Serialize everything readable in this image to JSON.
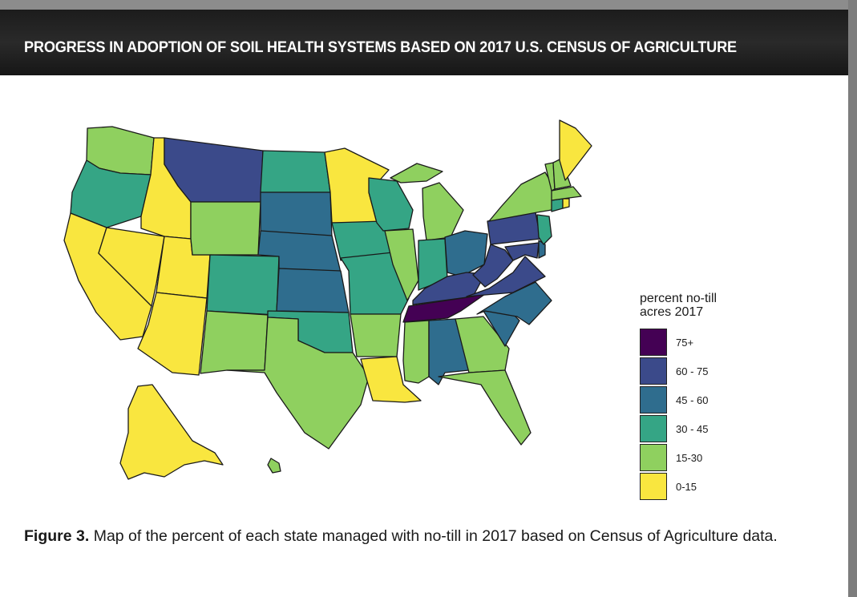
{
  "header": {
    "title": "PROGRESS IN ADOPTION OF SOIL HEALTH SYSTEMS BASED ON 2017 U.S. CENSUS OF AGRICULTURE"
  },
  "legend": {
    "title_line1": "percent no-till",
    "title_line2": "acres 2017",
    "items": [
      {
        "label": "75+",
        "color": "#440154"
      },
      {
        "label": "60 - 75",
        "color": "#3b4a8a"
      },
      {
        "label": "45 - 60",
        "color": "#2f6d8e"
      },
      {
        "label": "30 - 45",
        "color": "#35a585"
      },
      {
        "label": "15-30",
        "color": "#8fd05f"
      },
      {
        "label": "0-15",
        "color": "#f9e63f"
      }
    ]
  },
  "caption": {
    "label": "Figure 3.",
    "text": " Map of the percent of each state managed with no-till in 2017 based on Census of Agriculture data."
  },
  "states": [
    {
      "id": "WA",
      "bin": "15-30"
    },
    {
      "id": "OR",
      "bin": "30 - 45"
    },
    {
      "id": "CA",
      "bin": "0-15"
    },
    {
      "id": "NV",
      "bin": "0-15"
    },
    {
      "id": "ID",
      "bin": "0-15"
    },
    {
      "id": "UT",
      "bin": "0-15"
    },
    {
      "id": "AZ",
      "bin": "0-15"
    },
    {
      "id": "MT",
      "bin": "60 - 75"
    },
    {
      "id": "WY",
      "bin": "15-30"
    },
    {
      "id": "CO",
      "bin": "30 - 45"
    },
    {
      "id": "NM",
      "bin": "15-30"
    },
    {
      "id": "ND",
      "bin": "30 - 45"
    },
    {
      "id": "SD",
      "bin": "45 - 60"
    },
    {
      "id": "NE",
      "bin": "45 - 60"
    },
    {
      "id": "KS",
      "bin": "45 - 60"
    },
    {
      "id": "OK",
      "bin": "30 - 45"
    },
    {
      "id": "TX",
      "bin": "15-30"
    },
    {
      "id": "MN",
      "bin": "0-15"
    },
    {
      "id": "IA",
      "bin": "30 - 45"
    },
    {
      "id": "MO",
      "bin": "30 - 45"
    },
    {
      "id": "AR",
      "bin": "15-30"
    },
    {
      "id": "LA",
      "bin": "0-15"
    },
    {
      "id": "WI",
      "bin": "30 - 45"
    },
    {
      "id": "IL",
      "bin": "15-30"
    },
    {
      "id": "MI",
      "bin": "15-30"
    },
    {
      "id": "IN",
      "bin": "30 - 45"
    },
    {
      "id": "OH",
      "bin": "45 - 60"
    },
    {
      "id": "KY",
      "bin": "60 - 75"
    },
    {
      "id": "TN",
      "bin": "75+"
    },
    {
      "id": "MS",
      "bin": "15-30"
    },
    {
      "id": "AL",
      "bin": "45 - 60"
    },
    {
      "id": "GA",
      "bin": "15-30"
    },
    {
      "id": "FL",
      "bin": "15-30"
    },
    {
      "id": "SC",
      "bin": "45 - 60"
    },
    {
      "id": "NC",
      "bin": "45 - 60"
    },
    {
      "id": "VA",
      "bin": "60 - 75"
    },
    {
      "id": "WV",
      "bin": "60 - 75"
    },
    {
      "id": "MD",
      "bin": "60 - 75"
    },
    {
      "id": "DE",
      "bin": "45 - 60"
    },
    {
      "id": "PA",
      "bin": "60 - 75"
    },
    {
      "id": "NJ",
      "bin": "30 - 45"
    },
    {
      "id": "NY",
      "bin": "15-30"
    },
    {
      "id": "CT",
      "bin": "30 - 45"
    },
    {
      "id": "RI",
      "bin": "0-15"
    },
    {
      "id": "MA",
      "bin": "15-30"
    },
    {
      "id": "VT",
      "bin": "15-30"
    },
    {
      "id": "NH",
      "bin": "15-30"
    },
    {
      "id": "ME",
      "bin": "0-15"
    },
    {
      "id": "AK",
      "bin": "0-15"
    },
    {
      "id": "HI",
      "bin": "15-30"
    }
  ]
}
